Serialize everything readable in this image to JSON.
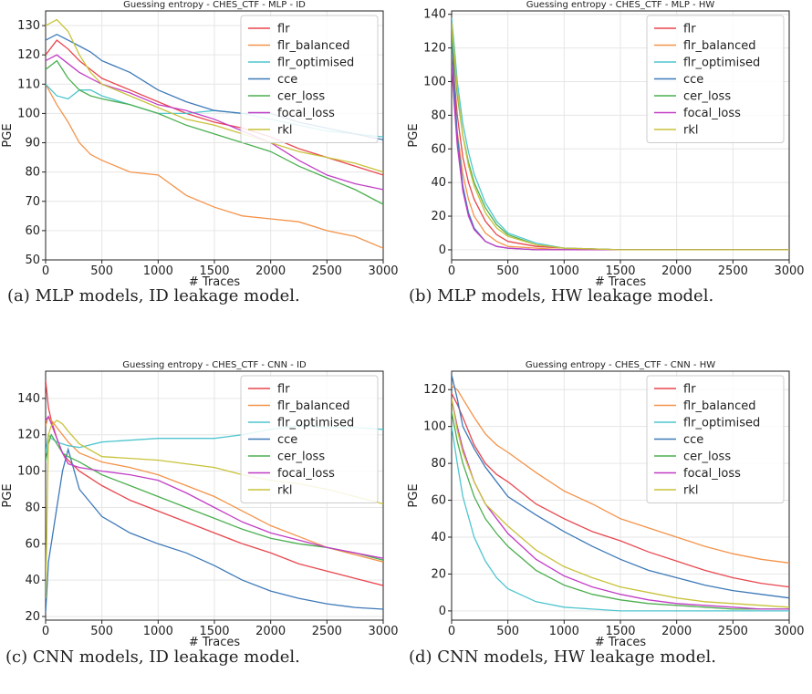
{
  "panels": [
    {
      "caption": "(a) MLP models, ID leakage model.",
      "chart_data": {
        "type": "line",
        "title": "Guessing entropy - CHES_CTF - MLP - ID",
        "xlabel": "# Traces",
        "ylabel": "PGE",
        "xlim": [
          0,
          3000
        ],
        "ylim": [
          50,
          135
        ],
        "xticks": [
          0,
          500,
          1000,
          1500,
          2000,
          2500,
          3000
        ],
        "yticks": [
          50,
          60,
          70,
          80,
          90,
          100,
          110,
          120,
          130
        ],
        "grid": true,
        "legend": "top-right",
        "x": [
          0,
          100,
          200,
          300,
          400,
          500,
          750,
          1000,
          1250,
          1500,
          1750,
          2000,
          2250,
          2500,
          2750,
          3000
        ],
        "series": [
          {
            "name": "flr",
            "color": "#e8474f",
            "values": [
              120,
              125,
              122,
              118,
              115,
              112,
              108,
              104,
              100,
              97,
              95,
              92,
              88,
              85,
              82,
              79
            ]
          },
          {
            "name": "flr_balanced",
            "color": "#f4934a",
            "values": [
              110,
              103,
              97,
              90,
              86,
              84,
              80,
              79,
              72,
              68,
              65,
              64,
              63,
              60,
              58,
              54
            ]
          },
          {
            "name": "flr_optimised",
            "color": "#4fc5cf",
            "values": [
              110,
              106,
              105,
              108,
              108,
              106,
              103,
              100,
              100,
              101,
              100,
              98,
              96,
              94,
              93,
              92
            ]
          },
          {
            "name": "cce",
            "color": "#3d79b8",
            "values": [
              125,
              127,
              125,
              123,
              121,
              118,
              114,
              108,
              104,
              101,
              100,
              100,
              97,
              95,
              93,
              91
            ]
          },
          {
            "name": "cer_loss",
            "color": "#4caf50",
            "values": [
              115,
              118,
              112,
              108,
              106,
              105,
              103,
              100,
              96,
              93,
              90,
              87,
              82,
              78,
              74,
              69
            ]
          },
          {
            "name": "focal_loss",
            "color": "#c23dc6",
            "values": [
              118,
              120,
              117,
              114,
              112,
              110,
              107,
              103,
              101,
              98,
              94,
              90,
              84,
              79,
              76,
              74
            ]
          },
          {
            "name": "rkl",
            "color": "#c8c23a",
            "values": [
              130,
              132,
              128,
              120,
              114,
              110,
              106,
              102,
              98,
              96,
              93,
              90,
              87,
              85,
              83,
              80
            ]
          }
        ]
      }
    },
    {
      "caption": "(b) MLP models, HW leakage model.",
      "chart_data": {
        "type": "line",
        "title": "Guessing entropy - CHES_CTF - MLP - HW",
        "xlabel": "# Traces",
        "ylabel": "PGE",
        "xlim": [
          0,
          3000
        ],
        "ylim": [
          -6,
          142
        ],
        "xticks": [
          0,
          500,
          1000,
          1500,
          2000,
          2500,
          3000
        ],
        "yticks": [
          0,
          20,
          40,
          60,
          80,
          100,
          120,
          140
        ],
        "grid": true,
        "legend": "top-right",
        "x": [
          0,
          25,
          50,
          100,
          150,
          200,
          300,
          400,
          500,
          750,
          1000,
          1500,
          2000,
          3000
        ],
        "series": [
          {
            "name": "flr",
            "color": "#e8474f",
            "values": [
              130,
              100,
              80,
              55,
              40,
              30,
              17,
              9,
              5,
              2,
              1,
              0,
              0,
              0
            ]
          },
          {
            "name": "flr_balanced",
            "color": "#f4934a",
            "values": [
              120,
              90,
              70,
              45,
              30,
              20,
              10,
              5,
              2,
              1,
              0,
              0,
              0,
              0
            ]
          },
          {
            "name": "flr_optimised",
            "color": "#4fc5cf",
            "values": [
              138,
              120,
              100,
              75,
              58,
              45,
              28,
              17,
              10,
              4,
              1,
              0,
              0,
              0
            ]
          },
          {
            "name": "cce",
            "color": "#3d79b8",
            "values": [
              125,
              95,
              68,
              38,
              22,
              13,
              5,
              2,
              1,
              0,
              0,
              0,
              0,
              0
            ]
          },
          {
            "name": "cer_loss",
            "color": "#4caf50",
            "values": [
              128,
              110,
              92,
              68,
              52,
              40,
              25,
              15,
              9,
              3,
              1,
              0,
              0,
              0
            ]
          },
          {
            "name": "focal_loss",
            "color": "#c23dc6",
            "values": [
              110,
              85,
              62,
              35,
              20,
              12,
              5,
              2,
              1,
              0,
              0,
              0,
              0,
              0
            ]
          },
          {
            "name": "rkl",
            "color": "#c8c23a",
            "values": [
              135,
              115,
              95,
              68,
              50,
              38,
              22,
              13,
              8,
              3,
              1,
              0,
              0,
              0
            ]
          }
        ]
      }
    },
    {
      "caption": "(c) CNN models, ID leakage model.",
      "chart_data": {
        "type": "line",
        "title": "Guessing entropy - CHES_CTF - CNN - ID",
        "xlabel": "# Traces",
        "ylabel": "PGE",
        "xlim": [
          0,
          3000
        ],
        "ylim": [
          18,
          155
        ],
        "xticks": [
          0,
          500,
          1000,
          1500,
          2000,
          2500,
          3000
        ],
        "yticks": [
          20,
          40,
          60,
          80,
          100,
          120,
          140
        ],
        "grid": true,
        "legend": "top-right",
        "x": [
          0,
          25,
          50,
          100,
          150,
          200,
          300,
          500,
          750,
          1000,
          1250,
          1500,
          1750,
          2000,
          2250,
          2500,
          2750,
          3000
        ],
        "series": [
          {
            "name": "flr",
            "color": "#e8474f",
            "values": [
              150,
              135,
              128,
              118,
              110,
              106,
              100,
              92,
              84,
              78,
              72,
              66,
              60,
              55,
              49,
              45,
              41,
              37
            ]
          },
          {
            "name": "flr_balanced",
            "color": "#f4934a",
            "values": [
              125,
              130,
              128,
              124,
              120,
              116,
              110,
              105,
              102,
              98,
              92,
              86,
              78,
              70,
              64,
              58,
              54,
              50
            ]
          },
          {
            "name": "flr_optimised",
            "color": "#4fc5cf",
            "values": [
              110,
              120,
              118,
              116,
              115,
              114,
              113,
              116,
              117,
              118,
              118,
              118,
              120,
              123,
              125,
              124,
              124,
              123
            ]
          },
          {
            "name": "cce",
            "color": "#3d79b8",
            "values": [
              22,
              50,
              60,
              80,
              100,
              112,
              90,
              75,
              66,
              60,
              55,
              48,
              40,
              34,
              30,
              27,
              25,
              24
            ]
          },
          {
            "name": "cer_loss",
            "color": "#4caf50",
            "values": [
              105,
              115,
              120,
              115,
              110,
              108,
              105,
              98,
              92,
              86,
              80,
              74,
              68,
              63,
              60,
              58,
              55,
              51
            ]
          },
          {
            "name": "focal_loss",
            "color": "#c23dc6",
            "values": [
              128,
              130,
              126,
              118,
              110,
              104,
              102,
              100,
              98,
              95,
              88,
              80,
              72,
              66,
              62,
              58,
              55,
              52
            ]
          },
          {
            "name": "rkl",
            "color": "#c8c23a",
            "values": [
              30,
              120,
              125,
              128,
              126,
              122,
              115,
              108,
              107,
              106,
              104,
              102,
              98,
              95,
              93,
              90,
              86,
              82
            ]
          }
        ]
      }
    },
    {
      "caption": "(d) CNN models, HW leakage model.",
      "chart_data": {
        "type": "line",
        "title": "Guessing entropy - CHES_CTF - CNN - HW",
        "xlabel": "# Traces",
        "ylabel": "PGE",
        "xlim": [
          0,
          3000
        ],
        "ylim": [
          -5,
          130
        ],
        "xticks": [
          0,
          500,
          1000,
          1500,
          2000,
          2500,
          3000
        ],
        "yticks": [
          0,
          20,
          40,
          60,
          80,
          100,
          120
        ],
        "grid": true,
        "legend": "top-right",
        "x": [
          0,
          50,
          100,
          200,
          300,
          400,
          500,
          750,
          1000,
          1250,
          1500,
          1750,
          2000,
          2250,
          2500,
          2750,
          3000
        ],
        "series": [
          {
            "name": "flr",
            "color": "#e8474f",
            "values": [
              118,
              112,
              105,
              90,
              80,
              74,
              70,
              58,
              50,
              43,
              38,
              32,
              27,
              22,
              18,
              15,
              13
            ]
          },
          {
            "name": "flr_balanced",
            "color": "#f4934a",
            "values": [
              122,
              120,
              115,
              105,
              96,
              90,
              86,
              75,
              65,
              58,
              50,
              45,
              40,
              35,
              31,
              28,
              26
            ]
          },
          {
            "name": "flr_optimised",
            "color": "#4fc5cf",
            "values": [
              100,
              80,
              62,
              40,
              27,
              18,
              12,
              5,
              2,
              1,
              0,
              0,
              0,
              0,
              0,
              0,
              0
            ]
          },
          {
            "name": "cce",
            "color": "#3d79b8",
            "values": [
              128,
              115,
              100,
              88,
              78,
              70,
              62,
              52,
              43,
              35,
              28,
              22,
              18,
              14,
              11,
              9,
              7
            ]
          },
          {
            "name": "cer_loss",
            "color": "#4caf50",
            "values": [
              108,
              92,
              80,
              62,
              50,
              42,
              35,
              22,
              14,
              9,
              6,
              4,
              3,
              2,
              1,
              1,
              1
            ]
          },
          {
            "name": "focal_loss",
            "color": "#c23dc6",
            "values": [
              115,
              100,
              88,
              70,
              58,
              50,
              42,
              28,
              19,
              13,
              9,
              6,
              4,
              3,
              2,
              1,
              1
            ]
          },
          {
            "name": "rkl",
            "color": "#c8c23a",
            "values": [
              115,
              98,
              86,
              70,
              58,
              52,
              46,
              33,
              24,
              18,
              13,
              10,
              7,
              5,
              4,
              3,
              2
            ]
          }
        ]
      }
    }
  ]
}
